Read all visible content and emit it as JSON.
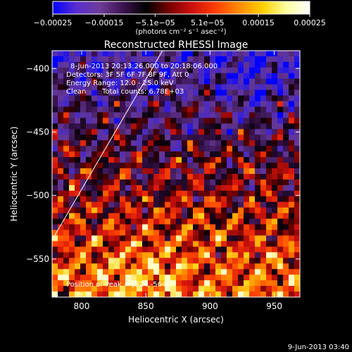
{
  "chart_data": {
    "type": "heatmap",
    "title": "Reconstructed RHESSI Image",
    "xlabel": "Heliocentric X (arcsec)",
    "ylabel": "Heliocentric Y (arcsec)",
    "xlim": [
      777,
      970
    ],
    "ylim": [
      -580,
      -386
    ],
    "x_ticks": [
      800,
      850,
      900,
      950
    ],
    "y_ticks": [
      -400,
      -450,
      -500,
      -550
    ],
    "x_tick_labels": [
      "800",
      "850",
      "900",
      "950"
    ],
    "y_tick_labels": [
      "−400",
      "−450",
      "−500",
      "−550"
    ],
    "colorbar": {
      "ticks": [
        -0.00025,
        -0.00015,
        -5.1e-05,
        5.1e-05,
        0.00015,
        0.00025
      ],
      "tick_labels": [
        "−0.00025",
        "−0.00015",
        "−5.1e−05",
        "5.1e−05",
        "0.00015",
        "0.00025"
      ],
      "range": [
        -0.00025,
        0.00025
      ],
      "units_label": "(photons cm⁻² s⁻¹ asec⁻²)",
      "colors": [
        "#0000ff",
        "#5a2dd0",
        "#6e3c9c",
        "#3d1450",
        "#000000",
        "#7a0000",
        "#d01010",
        "#ff4000",
        "#ff8c00",
        "#ffd000",
        "#ffffa0",
        "#ffffff"
      ]
    },
    "annotations": {
      "time_range": "8-Jun-2013 20:13:26.000 to 20:18:06.000",
      "detectors": "Detectors: 3F 5F 6F 7F 8F 9F, Att 0",
      "energy_range": "Energy Range: 12.0 - 25.0 keV",
      "method": "Clean",
      "total_counts": "Total counts: 6.78E+03",
      "peak_position": "Position of Peak = [824,-564]"
    },
    "limb_line": {
      "x": [
        777,
        863
      ],
      "y": [
        -535,
        -386
      ]
    }
  },
  "footer": {
    "date": "9-Jun-2013 03:40"
  }
}
